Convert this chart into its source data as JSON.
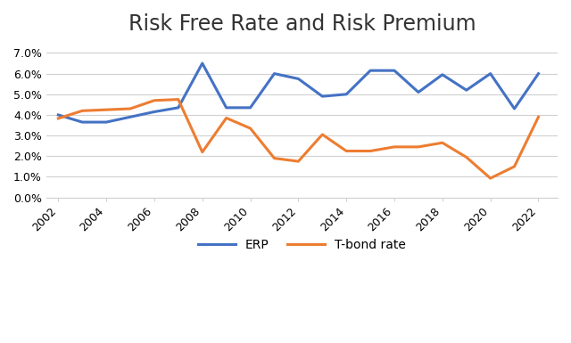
{
  "title": "Risk Free Rate and Risk Premium",
  "years": [
    2002,
    2003,
    2004,
    2005,
    2006,
    2007,
    2008,
    2009,
    2010,
    2011,
    2012,
    2013,
    2014,
    2015,
    2016,
    2017,
    2018,
    2019,
    2020,
    2021,
    2022
  ],
  "erp": [
    0.04,
    0.0365,
    0.0365,
    0.039,
    0.0415,
    0.0435,
    0.065,
    0.0435,
    0.0435,
    0.06,
    0.0575,
    0.049,
    0.05,
    0.0615,
    0.0615,
    0.051,
    0.0595,
    0.052,
    0.06,
    0.043,
    0.06
  ],
  "tbond": [
    0.0383,
    0.042,
    0.0425,
    0.043,
    0.047,
    0.0475,
    0.022,
    0.0385,
    0.0335,
    0.019,
    0.0175,
    0.0305,
    0.0225,
    0.0225,
    0.0245,
    0.0245,
    0.0265,
    0.0195,
    0.0093,
    0.015,
    0.039
  ],
  "erp_color": "#4472C4",
  "tbond_color": "#ED7D31",
  "erp_label": "ERP",
  "tbond_label": "T-bond rate",
  "ylim": [
    0.0,
    0.075
  ],
  "yticks": [
    0.0,
    0.01,
    0.02,
    0.03,
    0.04,
    0.05,
    0.06,
    0.07
  ],
  "xticks": [
    2002,
    2004,
    2006,
    2008,
    2010,
    2012,
    2014,
    2016,
    2018,
    2020,
    2022
  ],
  "title_fontsize": 17,
  "legend_fontsize": 10,
  "tick_fontsize": 9,
  "line_width": 2.2,
  "background_color": "#ffffff",
  "plot_bg_color": "#ffffff",
  "grid_color": "#d0d0d0",
  "grid_linewidth": 0.8
}
